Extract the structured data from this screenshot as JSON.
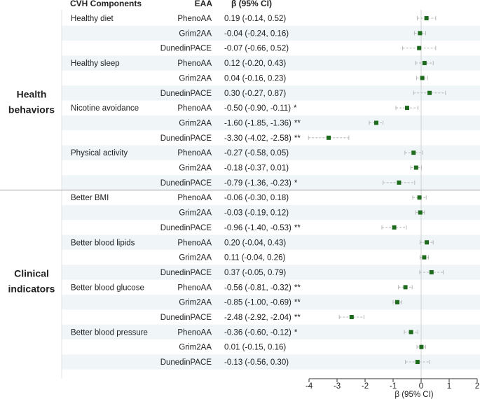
{
  "headers": {
    "components": "CVH Components",
    "eaa": "EAA",
    "beta": "β (95% CI)"
  },
  "groups": [
    {
      "name": "health-behaviors",
      "lines": [
        "Health",
        "behaviors"
      ]
    },
    {
      "name": "clinical-indicators",
      "lines": [
        "Clinical",
        "indicators"
      ]
    }
  ],
  "chart_data": {
    "type": "forest",
    "xlabel": "β (95% CI)",
    "xlim": [
      -4,
      2
    ],
    "xticks": [
      -4,
      -3,
      -2,
      -1,
      0,
      1,
      2
    ],
    "reference_line": 0,
    "point_color": "#1e6b1e",
    "ci_color": "#b8b8b8",
    "band_color": "#f0f6f8",
    "rows": [
      {
        "group": "Health behaviors",
        "component": "Healthy diet",
        "eaa": "PhenoAA",
        "beta": 0.19,
        "lo": -0.14,
        "hi": 0.52,
        "ci_text": "0.19 (-0.14, 0.52)",
        "sig": ""
      },
      {
        "group": "Health behaviors",
        "component": "",
        "eaa": "Grim2AA",
        "beta": -0.04,
        "lo": -0.24,
        "hi": 0.16,
        "ci_text": "-0.04 (-0.24, 0.16)",
        "sig": ""
      },
      {
        "group": "Health behaviors",
        "component": "",
        "eaa": "DunedinPACE",
        "beta": -0.07,
        "lo": -0.66,
        "hi": 0.52,
        "ci_text": "-0.07 (-0.66, 0.52)",
        "sig": ""
      },
      {
        "group": "Health behaviors",
        "component": "Healthy sleep",
        "eaa": "PhenoAA",
        "beta": 0.12,
        "lo": -0.2,
        "hi": 0.43,
        "ci_text": "0.12 (-0.20, 0.43)",
        "sig": ""
      },
      {
        "group": "Health behaviors",
        "component": "",
        "eaa": "Grim2AA",
        "beta": 0.04,
        "lo": -0.16,
        "hi": 0.23,
        "ci_text": "0.04 (-0.16, 0.23)",
        "sig": ""
      },
      {
        "group": "Health behaviors",
        "component": "",
        "eaa": "DunedinPACE",
        "beta": 0.3,
        "lo": -0.27,
        "hi": 0.87,
        "ci_text": "0.30 (-0.27, 0.87)",
        "sig": ""
      },
      {
        "group": "Health behaviors",
        "component": "Nicotine avoidance",
        "eaa": "PhenoAA",
        "beta": -0.5,
        "lo": -0.9,
        "hi": -0.11,
        "ci_text": "-0.50 (-0.90, -0.11)",
        "sig": "*"
      },
      {
        "group": "Health behaviors",
        "component": "",
        "eaa": "Grim2AA",
        "beta": -1.6,
        "lo": -1.85,
        "hi": -1.36,
        "ci_text": "-1.60 (-1.85, -1.36)",
        "sig": "**"
      },
      {
        "group": "Health behaviors",
        "component": "",
        "eaa": "DunedinPACE",
        "beta": -3.3,
        "lo": -4.02,
        "hi": -2.58,
        "ci_text": "-3.30 (-4.02, -2.58)",
        "sig": "**"
      },
      {
        "group": "Health behaviors",
        "component": "Physical activity",
        "eaa": "PhenoAA",
        "beta": -0.27,
        "lo": -0.58,
        "hi": 0.05,
        "ci_text": "-0.27 (-0.58, 0.05)",
        "sig": ""
      },
      {
        "group": "Health behaviors",
        "component": "",
        "eaa": "Grim2AA",
        "beta": -0.18,
        "lo": -0.37,
        "hi": 0.01,
        "ci_text": "-0.18 (-0.37, 0.01)",
        "sig": ""
      },
      {
        "group": "Health behaviors",
        "component": "",
        "eaa": "DunedinPACE",
        "beta": -0.79,
        "lo": -1.36,
        "hi": -0.23,
        "ci_text": "-0.79 (-1.36, -0.23)",
        "sig": "*"
      },
      {
        "group": "Clinical indicators",
        "component": "Better BMI",
        "eaa": "PhenoAA",
        "beta": -0.06,
        "lo": -0.3,
        "hi": 0.18,
        "ci_text": "-0.06 (-0.30, 0.18)",
        "sig": ""
      },
      {
        "group": "Clinical indicators",
        "component": "",
        "eaa": "Grim2AA",
        "beta": -0.03,
        "lo": -0.19,
        "hi": 0.12,
        "ci_text": "-0.03 (-0.19, 0.12)",
        "sig": ""
      },
      {
        "group": "Clinical indicators",
        "component": "",
        "eaa": "DunedinPACE",
        "beta": -0.96,
        "lo": -1.4,
        "hi": -0.53,
        "ci_text": "-0.96 (-1.40, -0.53)",
        "sig": "**"
      },
      {
        "group": "Clinical indicators",
        "component": "Better blood lipids",
        "eaa": "PhenoAA",
        "beta": 0.2,
        "lo": -0.04,
        "hi": 0.43,
        "ci_text": "0.20 (-0.04, 0.43)",
        "sig": ""
      },
      {
        "group": "Clinical indicators",
        "component": "",
        "eaa": "Grim2AA",
        "beta": 0.11,
        "lo": -0.04,
        "hi": 0.26,
        "ci_text": "0.11 (-0.04, 0.26)",
        "sig": ""
      },
      {
        "group": "Clinical indicators",
        "component": "",
        "eaa": "DunedinPACE",
        "beta": 0.37,
        "lo": -0.05,
        "hi": 0.79,
        "ci_text": "0.37 (-0.05, 0.79)",
        "sig": ""
      },
      {
        "group": "Clinical indicators",
        "component": "Better blood glucose",
        "eaa": "PhenoAA",
        "beta": -0.56,
        "lo": -0.81,
        "hi": -0.32,
        "ci_text": "-0.56 (-0.81, -0.32)",
        "sig": "**"
      },
      {
        "group": "Clinical indicators",
        "component": "",
        "eaa": "Grim2AA",
        "beta": -0.85,
        "lo": -1.0,
        "hi": -0.69,
        "ci_text": "-0.85 (-1.00, -0.69)",
        "sig": "**"
      },
      {
        "group": "Clinical indicators",
        "component": "",
        "eaa": "DunedinPACE",
        "beta": -2.48,
        "lo": -2.92,
        "hi": -2.04,
        "ci_text": "-2.48 (-2.92, -2.04)",
        "sig": "**"
      },
      {
        "group": "Clinical indicators",
        "component": "Better blood pressure",
        "eaa": "PhenoAA",
        "beta": -0.36,
        "lo": -0.6,
        "hi": -0.12,
        "ci_text": "-0.36 (-0.60, -0.12)",
        "sig": "*"
      },
      {
        "group": "Clinical indicators",
        "component": "",
        "eaa": "Grim2AA",
        "beta": 0.01,
        "lo": -0.15,
        "hi": 0.16,
        "ci_text": "0.01 (-0.15, 0.16)",
        "sig": ""
      },
      {
        "group": "Clinical indicators",
        "component": "",
        "eaa": "DunedinPACE",
        "beta": -0.13,
        "lo": -0.56,
        "hi": 0.3,
        "ci_text": "-0.13 (-0.56, 0.30)",
        "sig": ""
      }
    ]
  }
}
